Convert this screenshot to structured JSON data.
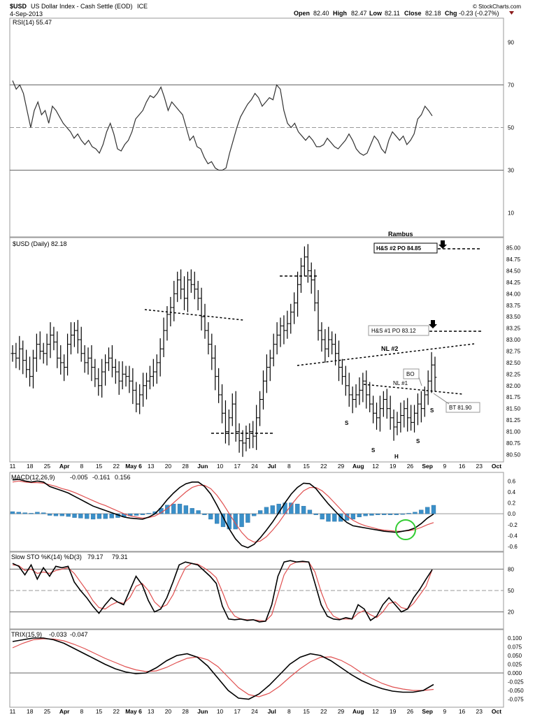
{
  "header": {
    "symbol": "$USD",
    "name": "US Dollar Index - Cash Settle (EOD)",
    "exchange": "ICE",
    "date": "4-Sep-2013",
    "open_label": "Open",
    "open": "82.40",
    "high_label": "High",
    "high": "82.47",
    "low_label": "Low",
    "low": "82.11",
    "close_label": "Close",
    "close": "82.18",
    "chg_label": "Chg",
    "chg": "-0.23 (-0.27%)",
    "watermark": "© StockCharts.com",
    "author": "Rambus"
  },
  "colors": {
    "price_line": "#000000",
    "signal_line": "#e05050",
    "histogram": "#3a8fc8",
    "green_circle": "#33cc33",
    "grid": "#cccccc",
    "down_marker": "#8b1a1a"
  },
  "chart_data": [
    {
      "type": "line",
      "panel": "rsi",
      "label": "RSI(14) 55.47",
      "ylim": [
        0,
        100
      ],
      "y_ticks": [
        "90",
        "70",
        "50",
        "30",
        "10"
      ],
      "reference_lines": [
        70,
        50,
        30
      ],
      "values": [
        72,
        68,
        70,
        66,
        58,
        50,
        58,
        62,
        56,
        58,
        52,
        60,
        58,
        55,
        52,
        50,
        48,
        45,
        47,
        44,
        42,
        44,
        41,
        40,
        38,
        42,
        48,
        52,
        47,
        40,
        39,
        42,
        44,
        48,
        54,
        56,
        58,
        62,
        65,
        64,
        66,
        69,
        64,
        58,
        62,
        60,
        58,
        56,
        50,
        44,
        46,
        41,
        40,
        36,
        33,
        34,
        31,
        30,
        30,
        31,
        38,
        44,
        50,
        55,
        58,
        61,
        63,
        66,
        64,
        60,
        62,
        64,
        63,
        70,
        68,
        58,
        52,
        50,
        52,
        48,
        46,
        44,
        46,
        44,
        41,
        41,
        42,
        45,
        43,
        41,
        40,
        42,
        44,
        47,
        44,
        40,
        38,
        37,
        38,
        42,
        46,
        44,
        40,
        38,
        44,
        48,
        46,
        44,
        46,
        42,
        44,
        47,
        54,
        56,
        60,
        58,
        55.47
      ]
    },
    {
      "type": "ohlc",
      "panel": "price",
      "label": "$USD (Daily) 82.18",
      "ylim": [
        80.4,
        85.1
      ],
      "y_ticks": [
        "85.00",
        "84.75",
        "84.50",
        "84.25",
        "84.00",
        "83.75",
        "83.50",
        "83.25",
        "83.00",
        "82.75",
        "82.50",
        "82.25",
        "82.00",
        "81.75",
        "81.50",
        "81.25",
        "81.00",
        "80.75",
        "80.50"
      ],
      "close": [
        82.7,
        82.6,
        82.8,
        82.55,
        82.35,
        82.2,
        82.6,
        82.9,
        82.75,
        82.7,
        82.9,
        83.1,
        82.95,
        82.6,
        82.5,
        82.4,
        82.9,
        83.1,
        83.2,
        83.0,
        82.7,
        82.5,
        82.6,
        82.4,
        82.15,
        82.0,
        82.3,
        82.5,
        82.6,
        82.4,
        82.3,
        82.1,
        82.25,
        82.2,
        82.1,
        81.9,
        81.6,
        81.8,
        82.0,
        82.1,
        82.2,
        82.3,
        82.5,
        82.8,
        83.2,
        83.55,
        83.7,
        84.0,
        84.3,
        84.1,
        83.9,
        84.3,
        84.2,
        84.1,
        83.9,
        83.5,
        83.2,
        82.9,
        82.6,
        82.2,
        81.8,
        81.4,
        81.0,
        81.3,
        81.6,
        81.0,
        80.8,
        80.75,
        80.85,
        81.0,
        80.9,
        81.3,
        81.7,
        82.1,
        82.4,
        82.6,
        82.9,
        83.1,
        83.3,
        83.2,
        83.35,
        83.6,
        83.8,
        84.2,
        84.6,
        84.8,
        84.5,
        84.3,
        83.8,
        83.2,
        83.0,
        82.8,
        83.0,
        82.9,
        82.7,
        82.4,
        82.2,
        82.0,
        81.8,
        81.7,
        81.8,
        81.9,
        82.1,
        81.8,
        81.6,
        81.4,
        81.3,
        81.5,
        81.7,
        81.5,
        81.3,
        81.1,
        81.2,
        81.35,
        81.5,
        81.3,
        81.2,
        81.4,
        81.6,
        81.5,
        81.8,
        82.1,
        82.45,
        82.18
      ],
      "annotations": [
        {
          "text": "H&S #2 PO 84.85",
          "value": 84.85,
          "boxed": true,
          "bold": true
        },
        {
          "text": "H&S #1 PO 83.12",
          "value": 83.12,
          "boxed": true,
          "bold": false
        },
        {
          "text": "NL #2"
        },
        {
          "text": "NL #1"
        },
        {
          "text": "BO"
        },
        {
          "text": "BT 81.90"
        },
        {
          "text": "S"
        },
        {
          "text": "S"
        },
        {
          "text": "H"
        },
        {
          "text": "S"
        },
        {
          "text": "S"
        }
      ]
    },
    {
      "type": "area",
      "panel": "macd",
      "label_name": "MACD(12,26,9)",
      "label_macd": "-0.005",
      "label_signal": "-0.161",
      "label_hist": "0.156",
      "ylim": [
        -0.65,
        0.68
      ],
      "y_ticks": [
        "0.6",
        "0.4",
        "0.2",
        "0.0",
        "-0.2",
        "-0.4",
        "-0.6"
      ],
      "macd": [
        0.62,
        0.63,
        0.6,
        0.58,
        0.6,
        0.58,
        0.5,
        0.46,
        0.42,
        0.38,
        0.32,
        0.26,
        0.2,
        0.14,
        0.1,
        0.06,
        0.02,
        -0.02,
        -0.06,
        -0.08,
        -0.09,
        -0.1,
        -0.06,
        0.0,
        0.12,
        0.26,
        0.38,
        0.48,
        0.55,
        0.58,
        0.58,
        0.5,
        0.36,
        0.16,
        -0.06,
        -0.28,
        -0.46,
        -0.58,
        -0.62,
        -0.56,
        -0.44,
        -0.3,
        -0.15,
        0.02,
        0.2,
        0.36,
        0.48,
        0.56,
        0.55,
        0.46,
        0.32,
        0.18,
        0.06,
        -0.06,
        -0.16,
        -0.22,
        -0.24,
        -0.26,
        -0.28,
        -0.3,
        -0.32,
        -0.33,
        -0.34,
        -0.32,
        -0.3,
        -0.26,
        -0.18,
        -0.08,
        -0.005
      ],
      "signal": [
        0.58,
        0.6,
        0.58,
        0.57,
        0.57,
        0.56,
        0.53,
        0.5,
        0.46,
        0.43,
        0.39,
        0.34,
        0.29,
        0.24,
        0.19,
        0.15,
        0.1,
        0.05,
        0.0,
        -0.04,
        -0.06,
        -0.08,
        -0.07,
        -0.04,
        0.02,
        0.1,
        0.2,
        0.3,
        0.4,
        0.48,
        0.52,
        0.52,
        0.46,
        0.34,
        0.18,
        0.0,
        -0.18,
        -0.34,
        -0.46,
        -0.52,
        -0.5,
        -0.42,
        -0.3,
        -0.16,
        0.0,
        0.16,
        0.3,
        0.42,
        0.48,
        0.48,
        0.42,
        0.32,
        0.2,
        0.08,
        -0.04,
        -0.12,
        -0.18,
        -0.22,
        -0.25,
        -0.28,
        -0.3,
        -0.31,
        -0.32,
        -0.32,
        -0.31,
        -0.29,
        -0.25,
        -0.2,
        -0.161
      ]
    },
    {
      "type": "line",
      "panel": "stochastic",
      "label_name": "Slow STO %K(14) %D(3)",
      "label_k": "79.17",
      "label_d": "79.31",
      "ylim": [
        0,
        100
      ],
      "y_ticks": [
        "80",
        "50",
        "20"
      ],
      "reference_lines": [
        80,
        50,
        20
      ],
      "k": [
        88,
        84,
        72,
        86,
        66,
        82,
        70,
        84,
        82,
        84,
        62,
        50,
        40,
        28,
        18,
        30,
        40,
        34,
        30,
        50,
        70,
        58,
        36,
        20,
        24,
        40,
        62,
        86,
        90,
        88,
        86,
        78,
        70,
        60,
        28,
        10,
        9,
        10,
        8,
        9,
        6,
        7,
        30,
        70,
        90,
        92,
        90,
        91,
        90,
        60,
        30,
        14,
        10,
        9,
        12,
        10,
        30,
        24,
        8,
        14,
        30,
        40,
        30,
        20,
        24,
        40,
        52,
        66,
        79.17
      ],
      "d": [
        86,
        85,
        78,
        80,
        74,
        76,
        74,
        78,
        80,
        82,
        74,
        62,
        50,
        36,
        26,
        24,
        30,
        34,
        32,
        40,
        56,
        60,
        50,
        34,
        26,
        30,
        44,
        64,
        82,
        88,
        87,
        82,
        76,
        68,
        48,
        26,
        14,
        10,
        9,
        9,
        8,
        7,
        16,
        44,
        72,
        86,
        90,
        90,
        90,
        76,
        48,
        26,
        14,
        10,
        10,
        10,
        18,
        22,
        16,
        12,
        20,
        32,
        34,
        26,
        24,
        32,
        44,
        56,
        79.31
      ]
    },
    {
      "type": "line",
      "panel": "trix",
      "label_name": "TRIX(15,9)",
      "label_trix": "-0.033",
      "label_signal": "-0.047",
      "ylim": [
        -0.09,
        0.11
      ],
      "y_ticks": [
        "0.100",
        "0.075",
        "0.050",
        "0.025",
        "0.000",
        "-0.025",
        "-0.050",
        "-0.075"
      ],
      "trix": [
        0.09,
        0.095,
        0.1,
        0.1,
        0.095,
        0.085,
        0.07,
        0.055,
        0.04,
        0.025,
        0.012,
        0.003,
        -0.002,
        0.0,
        0.015,
        0.035,
        0.05,
        0.055,
        0.045,
        0.02,
        -0.015,
        -0.05,
        -0.072,
        -0.075,
        -0.06,
        -0.035,
        -0.005,
        0.025,
        0.045,
        0.055,
        0.05,
        0.035,
        0.015,
        -0.005,
        -0.022,
        -0.035,
        -0.045,
        -0.052,
        -0.055,
        -0.055,
        -0.05,
        -0.033
      ],
      "signal": [
        0.072,
        0.085,
        0.095,
        0.098,
        0.097,
        0.092,
        0.082,
        0.07,
        0.056,
        0.042,
        0.03,
        0.018,
        0.009,
        0.004,
        0.006,
        0.016,
        0.03,
        0.042,
        0.046,
        0.038,
        0.018,
        -0.012,
        -0.042,
        -0.062,
        -0.068,
        -0.058,
        -0.038,
        -0.012,
        0.012,
        0.032,
        0.045,
        0.046,
        0.036,
        0.02,
        0.0,
        -0.016,
        -0.03,
        -0.04,
        -0.046,
        -0.05,
        -0.05,
        -0.047
      ]
    },
    {
      "type": "axis",
      "panel": "x-axis",
      "labels": [
        "11",
        "18",
        "25",
        "Apr",
        "8",
        "15",
        "22",
        "May 6",
        "13",
        "20",
        "28",
        "Jun",
        "10",
        "17",
        "24",
        "Jul",
        "8",
        "15",
        "22",
        "29",
        "Aug",
        "12",
        "19",
        "26",
        "Sep",
        "9",
        "16",
        "23",
        "Oct"
      ]
    }
  ]
}
